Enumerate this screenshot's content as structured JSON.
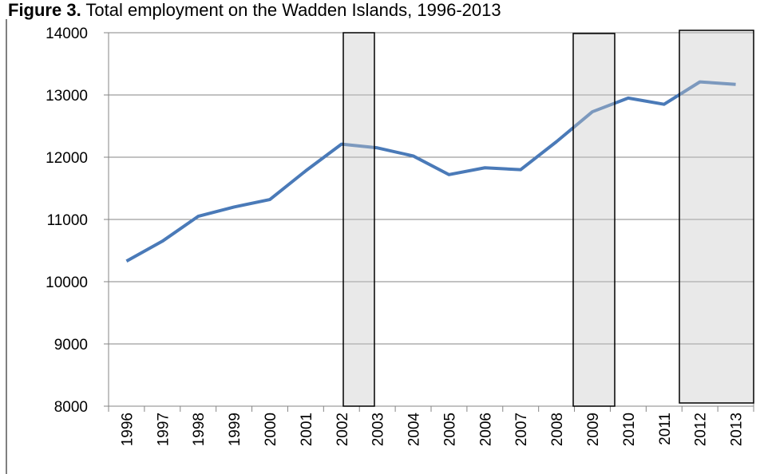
{
  "chart_data": {
    "type": "line",
    "figure_label": "Figure 3.",
    "title": "Total employment on the Wadden Islands, 1996-2013",
    "categories": [
      "1996",
      "1997",
      "1998",
      "1999",
      "2000",
      "2001",
      "2002",
      "2003",
      "2004",
      "2005",
      "2006",
      "2007",
      "2008",
      "2009",
      "2010",
      "2011",
      "2012",
      "2013"
    ],
    "series": [
      {
        "color": "#4a7ab8",
        "values": [
          10330,
          10650,
          11050,
          11200,
          11320,
          11780,
          12210,
          12150,
          12020,
          11720,
          11830,
          11800,
          12250,
          12730,
          12950,
          12850,
          13210,
          13170
        ]
      }
    ],
    "ylim": [
      8000,
      14000
    ],
    "yticks": [
      8000,
      9000,
      10000,
      11000,
      12000,
      13000,
      14000
    ],
    "grid": true
  }
}
